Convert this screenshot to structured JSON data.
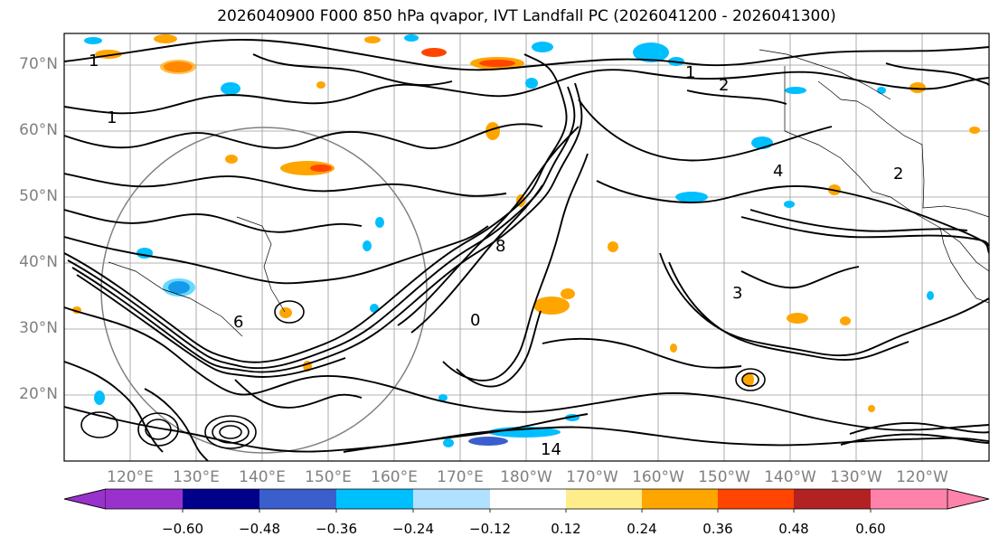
{
  "title": "2026040900 F000 850 hPa qvapor, IVT Landfall PC (2026041200 - 2026041300)",
  "map": {
    "latitude_labels": [
      "70°N",
      "60°N",
      "50°N",
      "40°N",
      "30°N",
      "20°N"
    ],
    "longitude_labels": [
      "120°E",
      "130°E",
      "140°E",
      "150°E",
      "160°E",
      "170°E",
      "180°W",
      "170°W",
      "160°W",
      "150°W",
      "140°W",
      "130°W",
      "120°W"
    ],
    "contour_labels": [
      "1",
      "1",
      "1",
      "2",
      "2",
      "4",
      "3",
      "8",
      "6",
      "0",
      "14"
    ]
  },
  "colorbar": {
    "tick_labels": [
      "−0.60",
      "−0.48",
      "−0.36",
      "−0.24",
      "−0.12",
      "0.12",
      "0.24",
      "0.36",
      "0.48",
      "0.60"
    ],
    "colors": [
      "#9932cc",
      "#00008b",
      "#3a5fcd",
      "#00bfff",
      "#b0e2ff",
      "#ffffff",
      "#ffec8b",
      "#ffa500",
      "#ff4500",
      "#b22222",
      "#ff82ab"
    ],
    "extend": "both"
  }
}
